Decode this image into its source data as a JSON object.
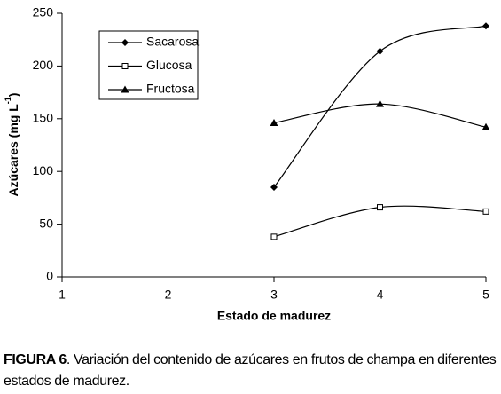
{
  "chart_data": {
    "type": "line",
    "x": [
      3,
      4,
      5
    ],
    "series": [
      {
        "name": "Sacarosa",
        "color": "#000000",
        "marker": "diamond",
        "values": [
          85,
          214,
          238
        ]
      },
      {
        "name": "Glucosa",
        "color": "#000000",
        "marker": "square-open",
        "values": [
          38,
          66,
          62
        ]
      },
      {
        "name": "Fructosa",
        "color": "#000000",
        "marker": "triangle",
        "values": [
          146,
          164,
          142
        ]
      }
    ],
    "xlim": [
      1,
      5
    ],
    "xticks": [
      1,
      2,
      3,
      4,
      5
    ],
    "ylim": [
      0,
      250
    ],
    "yticks": [
      0,
      50,
      100,
      150,
      200,
      250
    ],
    "x_label": "Estado de madurez",
    "y_label": [
      "Azúcares (mg L",
      "-1",
      ")"
    ],
    "grid": false,
    "legend": "upper-left",
    "smooth": true
  },
  "caption": {
    "label": "FIGURA 6",
    "text": ". Variación del contenido de azúcares en frutos de champa en diferentes estados de madurez."
  }
}
